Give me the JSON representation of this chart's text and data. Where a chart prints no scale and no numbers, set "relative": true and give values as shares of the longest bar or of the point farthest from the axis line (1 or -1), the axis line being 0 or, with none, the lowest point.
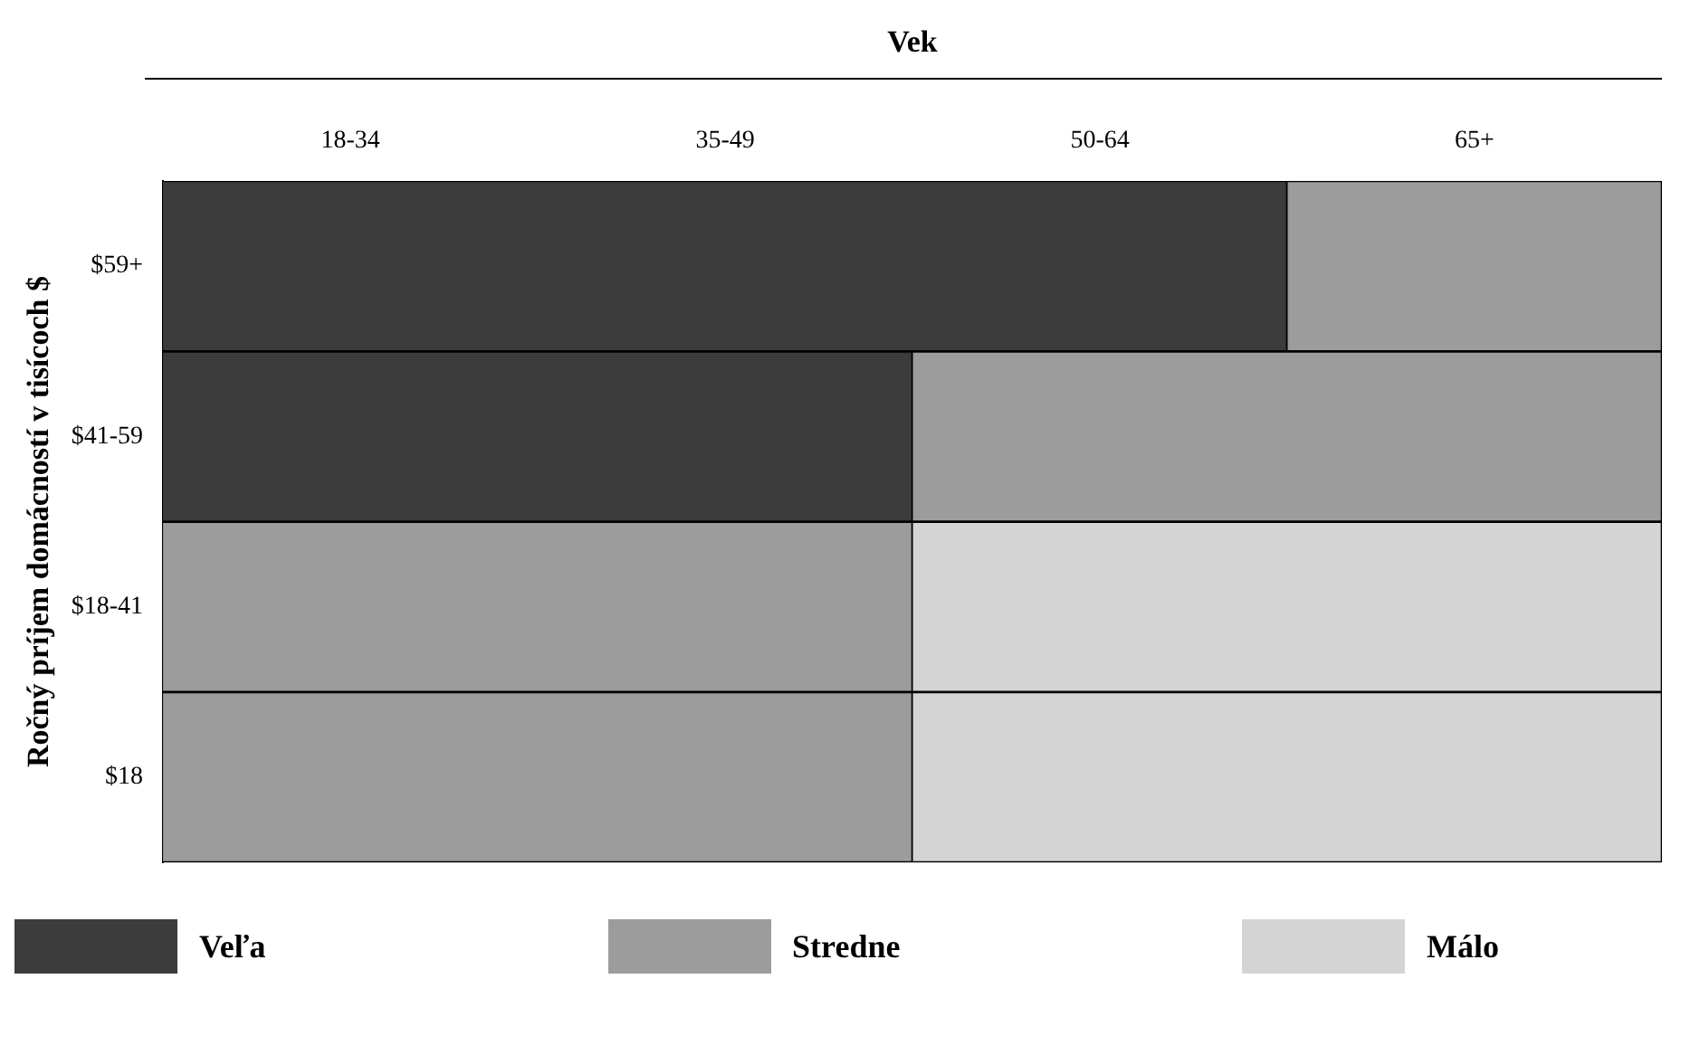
{
  "chart_data": {
    "type": "bar",
    "orientation": "horizontal",
    "stacked": true,
    "relative": true,
    "xlabel": "Vek",
    "ylabel": "Ročný príjem domácností v tisícoch $",
    "categories": [
      "$59+",
      "$41-59",
      "$18-41",
      "$18"
    ],
    "series": [
      {
        "name": "Veľa",
        "color": "#3c3c3c",
        "values": [
          0.75,
          0.5,
          0,
          0
        ]
      },
      {
        "name": "Stredne",
        "color": "#9c9c9c",
        "values": [
          0.25,
          0.5,
          0.5,
          0.5
        ]
      },
      {
        "name": "Málo",
        "color": "#d4d4d4",
        "values": [
          0,
          0,
          0.5,
          0.5
        ]
      }
    ],
    "annotations": [
      "18-34",
      "35-49",
      "50-64",
      "65+"
    ],
    "legend": "bottom"
  }
}
